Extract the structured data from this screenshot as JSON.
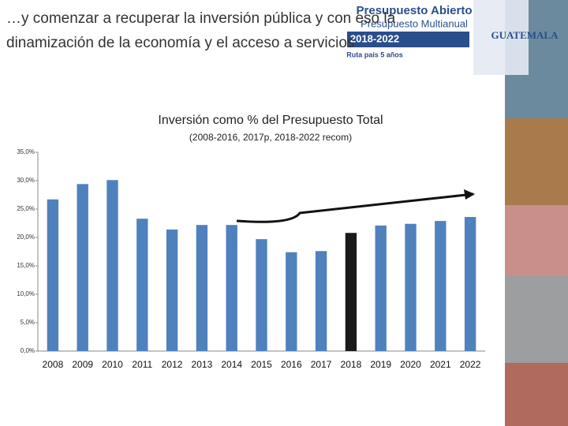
{
  "header": {
    "title_line1": "…y comenzar a recuperar  la inversión pública y con eso la",
    "title_line2": "dinamización de la economía y el acceso a servicios"
  },
  "logo": {
    "brand": "Presupuesto Abierto",
    "subtitle": "Presupuesto Multianual",
    "period": "2018-2022",
    "tagline": "Ruta país 5 años",
    "country": "GUATEMALA"
  },
  "chart_data": {
    "type": "bar",
    "title": "Inversión como % del Presupuesto Total",
    "subtitle": "(2008-2016, 2017p, 2018-2022 recom)",
    "categories": [
      "2008",
      "2009",
      "2010",
      "2011",
      "2012",
      "2013",
      "2014",
      "2015",
      "2016",
      "2017",
      "2018",
      "2019",
      "2020",
      "2021",
      "2022"
    ],
    "values": [
      26.7,
      29.4,
      30.1,
      23.3,
      21.4,
      22.2,
      22.2,
      19.7,
      17.4,
      17.6,
      20.8,
      22.1,
      22.4,
      22.9,
      23.6
    ],
    "colors": [
      "#4f81bd",
      "#4f81bd",
      "#4f81bd",
      "#4f81bd",
      "#4f81bd",
      "#4f81bd",
      "#4f81bd",
      "#4f81bd",
      "#4f81bd",
      "#4f81bd",
      "#1a1a1a",
      "#4f81bd",
      "#4f81bd",
      "#4f81bd",
      "#4f81bd"
    ],
    "ylim": [
      0,
      35
    ],
    "yticks": [
      {
        "value": 0,
        "label": "0,0%"
      },
      {
        "value": 5,
        "label": "5,0%"
      },
      {
        "value": 10,
        "label": "10,0%"
      },
      {
        "value": 15,
        "label": "15,0%"
      },
      {
        "value": 20,
        "label": "20,0%"
      },
      {
        "value": 25,
        "label": "25,0%"
      },
      {
        "value": 30,
        "label": "30,0%"
      },
      {
        "value": 35,
        "label": "35,0%"
      }
    ],
    "grid": false
  }
}
